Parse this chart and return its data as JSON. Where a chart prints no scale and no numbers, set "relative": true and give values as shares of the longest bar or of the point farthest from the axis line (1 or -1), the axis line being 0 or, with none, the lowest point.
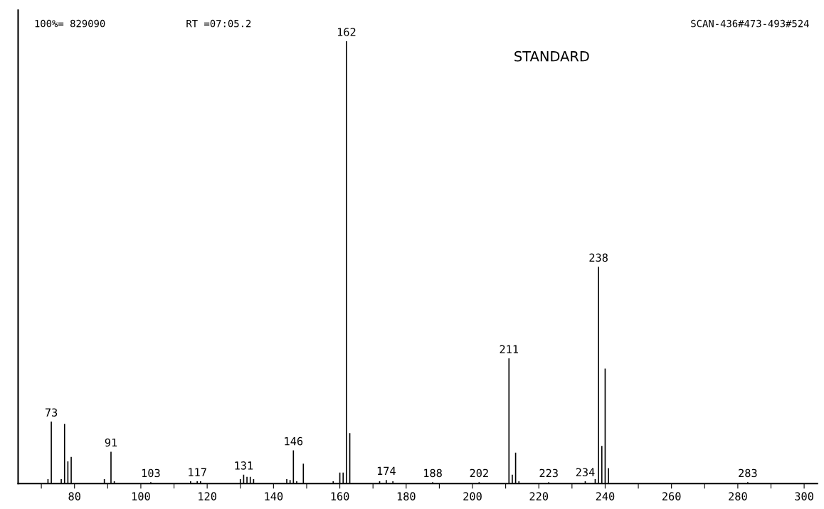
{
  "chart_data": {
    "type": "bar",
    "title": "STANDARD",
    "relative": true,
    "color": "#000000",
    "x": [
      72,
      73,
      76,
      77,
      78,
      79,
      89,
      91,
      92,
      103,
      115,
      117,
      118,
      130,
      131,
      132,
      133,
      134,
      144,
      145,
      146,
      147,
      149,
      158,
      160,
      161,
      162,
      163,
      172,
      174,
      176,
      188,
      202,
      211,
      212,
      213,
      214,
      223,
      234,
      237,
      238,
      239,
      240,
      241,
      283
    ],
    "values": [
      0.01,
      0.14,
      0.01,
      0.135,
      0.05,
      0.06,
      0.01,
      0.072,
      0.005,
      0.003,
      0.005,
      0.005,
      0.005,
      0.01,
      0.02,
      0.015,
      0.015,
      0.01,
      0.01,
      0.008,
      0.075,
      0.005,
      0.045,
      0.005,
      0.025,
      0.025,
      1.0,
      0.114,
      0.005,
      0.008,
      0.005,
      0.003,
      0.003,
      0.283,
      0.02,
      0.07,
      0.005,
      0.003,
      0.005,
      0.01,
      0.49,
      0.085,
      0.26,
      0.035,
      0.003
    ],
    "xlim": [
      63,
      304
    ],
    "xticks": [
      {
        "value": 70,
        "label": null
      },
      80,
      {
        "value": 90,
        "label": null
      },
      100,
      {
        "value": 110,
        "label": null
      },
      120,
      {
        "value": 130,
        "label": null
      },
      140,
      {
        "value": 150,
        "label": null
      },
      160,
      {
        "value": 170,
        "label": null
      },
      180,
      {
        "value": 190,
        "label": null
      },
      200,
      {
        "value": 210,
        "label": null
      },
      220,
      {
        "value": 230,
        "label": null
      },
      240,
      {
        "value": 250,
        "label": null
      },
      260,
      {
        "value": 270,
        "label": null
      },
      280,
      {
        "value": 290,
        "label": null
      },
      300
    ],
    "annotations": [
      "100%= 829090",
      "RT =07:05.2",
      "SCAN-436#473-493#524",
      {
        "text": "73",
        "x": 73,
        "y": 0.14
      },
      {
        "text": "91",
        "x": 91,
        "y": 0.072
      },
      {
        "text": "103",
        "x": 103,
        "y": 0.003
      },
      {
        "text": "117",
        "x": 117,
        "y": 0.005
      },
      {
        "text": "131",
        "x": 131,
        "y": 0.02
      },
      {
        "text": "146",
        "x": 146,
        "y": 0.075
      },
      {
        "text": "162",
        "x": 162,
        "y": 1.0
      },
      {
        "text": "174",
        "x": 174,
        "y": 0.008
      },
      {
        "text": "188",
        "x": 188,
        "y": 0.003
      },
      {
        "text": "202",
        "x": 202,
        "y": 0.003
      },
      {
        "text": "211",
        "x": 211,
        "y": 0.283
      },
      {
        "text": "223",
        "x": 223,
        "y": 0.003
      },
      {
        "text": "234",
        "x": 234,
        "y": 0.005
      },
      {
        "text": "238",
        "x": 238,
        "y": 0.49
      },
      {
        "text": "283",
        "x": 283,
        "y": 0.003
      }
    ]
  }
}
